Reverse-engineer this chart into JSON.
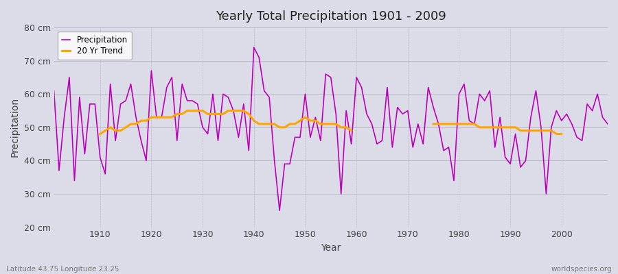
{
  "title": "Yearly Total Precipitation 1901 - 2009",
  "xlabel": "Year",
  "ylabel": "Precipitation",
  "subtitle_left": "Latitude 43.75 Longitude 23.25",
  "subtitle_right": "worldspecies.org",
  "line_color": "#bb00bb",
  "trend_color": "#ffa500",
  "bg_color": "#dcdce8",
  "plot_bg_color": "#dcdce8",
  "ylim": [
    20,
    80
  ],
  "xlim": [
    1901,
    2009
  ],
  "yticks": [
    20,
    30,
    40,
    50,
    60,
    70,
    80
  ],
  "ytick_labels": [
    "20 cm",
    "30 cm",
    "40 cm",
    "50 cm",
    "60 cm",
    "70 cm",
    "80 cm"
  ],
  "xticks": [
    1910,
    1920,
    1930,
    1940,
    1950,
    1960,
    1970,
    1980,
    1990,
    2000
  ],
  "years": [
    1901,
    1902,
    1903,
    1904,
    1905,
    1906,
    1907,
    1908,
    1909,
    1910,
    1911,
    1912,
    1913,
    1914,
    1915,
    1916,
    1917,
    1918,
    1919,
    1920,
    1921,
    1922,
    1923,
    1924,
    1925,
    1926,
    1927,
    1928,
    1929,
    1930,
    1931,
    1932,
    1933,
    1934,
    1935,
    1936,
    1937,
    1938,
    1939,
    1940,
    1941,
    1942,
    1943,
    1944,
    1945,
    1946,
    1947,
    1948,
    1949,
    1950,
    1951,
    1952,
    1953,
    1954,
    1955,
    1956,
    1957,
    1958,
    1959,
    1960,
    1961,
    1962,
    1963,
    1964,
    1965,
    1966,
    1967,
    1968,
    1969,
    1970,
    1971,
    1972,
    1973,
    1974,
    1975,
    1976,
    1977,
    1978,
    1979,
    1980,
    1981,
    1982,
    1983,
    1984,
    1985,
    1986,
    1987,
    1988,
    1989,
    1990,
    1991,
    1992,
    1993,
    1994,
    1995,
    1996,
    1997,
    1998,
    1999,
    2000,
    2001,
    2002,
    2003,
    2004,
    2005,
    2006,
    2007,
    2008,
    2009
  ],
  "precip": [
    61,
    37,
    53,
    65,
    34,
    59,
    42,
    57,
    57,
    41,
    36,
    63,
    46,
    57,
    58,
    63,
    53,
    46,
    40,
    67,
    53,
    53,
    62,
    65,
    46,
    63,
    58,
    58,
    57,
    50,
    48,
    60,
    46,
    60,
    59,
    55,
    47,
    57,
    43,
    74,
    71,
    61,
    59,
    40,
    25,
    39,
    39,
    47,
    47,
    60,
    47,
    53,
    46,
    66,
    65,
    54,
    30,
    55,
    45,
    65,
    62,
    54,
    51,
    45,
    46,
    62,
    44,
    56,
    54,
    55,
    44,
    51,
    45,
    62,
    56,
    51,
    43,
    44,
    34,
    60,
    63,
    52,
    51,
    60,
    58,
    61,
    44,
    53,
    41,
    39,
    48,
    38,
    40,
    53,
    61,
    50,
    30,
    50,
    55,
    52,
    54,
    51,
    47,
    46,
    57,
    55,
    60,
    53,
    51
  ],
  "trend_segments": [
    {
      "years": [
        1910,
        1911,
        1912,
        1913,
        1914,
        1915,
        1916,
        1917,
        1918,
        1919,
        1920,
        1921,
        1922,
        1923,
        1924,
        1925,
        1926,
        1927,
        1928,
        1929,
        1930,
        1931,
        1932,
        1933,
        1934,
        1935,
        1936,
        1937,
        1938,
        1939,
        1940,
        1941,
        1942,
        1943,
        1944,
        1945,
        1946,
        1947,
        1948,
        1949,
        1950,
        1951,
        1952,
        1953,
        1954,
        1955,
        1956,
        1957,
        1958,
        1959
      ],
      "vals": [
        48,
        49,
        50,
        49,
        49,
        50,
        51,
        51,
        52,
        52,
        53,
        53,
        53,
        53,
        53,
        54,
        54,
        55,
        55,
        55,
        55,
        54,
        54,
        54,
        54,
        55,
        55,
        55,
        55,
        54,
        52,
        51,
        51,
        51,
        51,
        50,
        50,
        51,
        51,
        52,
        53,
        52,
        52,
        51,
        51,
        51,
        51,
        50,
        50,
        49
      ]
    },
    {
      "years": [
        1975,
        1976,
        1977,
        1978,
        1979,
        1980,
        1981,
        1982,
        1983,
        1984,
        1985,
        1986,
        1987,
        1988,
        1989,
        1990,
        1991,
        1992,
        1993,
        1994,
        1995,
        1996,
        1997,
        1998,
        1999,
        2000
      ],
      "vals": [
        51,
        51,
        51,
        51,
        51,
        51,
        51,
        51,
        51,
        50,
        50,
        50,
        50,
        50,
        50,
        50,
        50,
        49,
        49,
        49,
        49,
        49,
        49,
        49,
        48,
        48
      ]
    }
  ]
}
